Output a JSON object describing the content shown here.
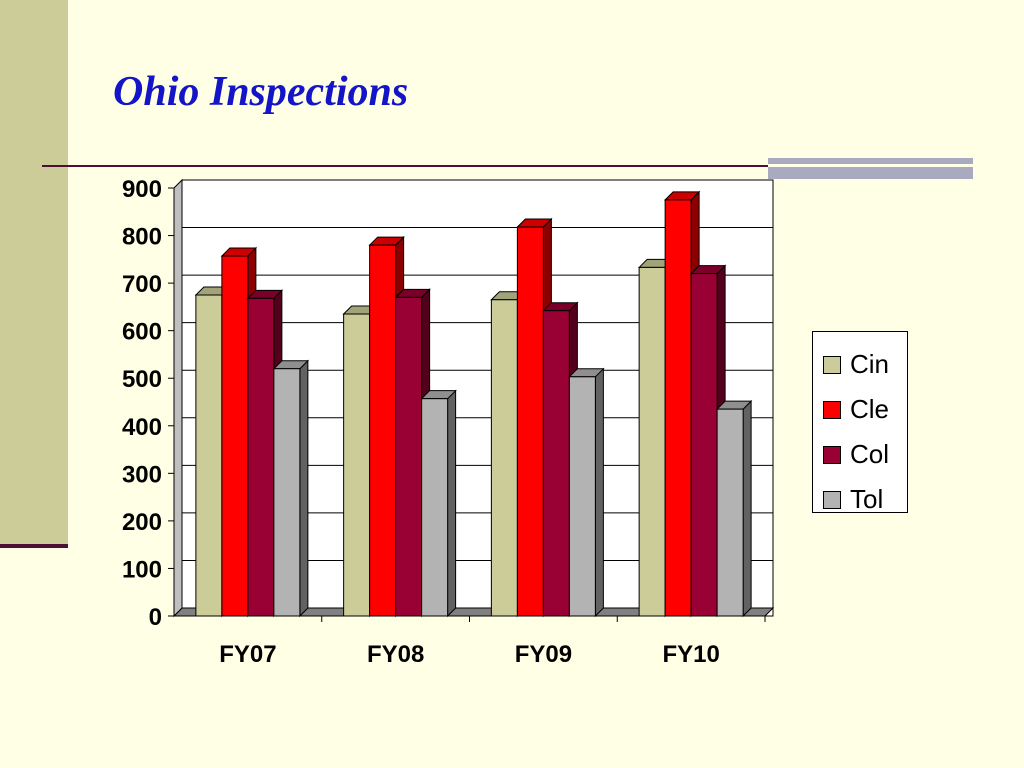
{
  "title": "Ohio Inspections",
  "chart_data": {
    "type": "bar",
    "title": "",
    "xlabel": "",
    "ylabel": "",
    "ylim": [
      0,
      900
    ],
    "yticks": [
      0,
      100,
      200,
      300,
      400,
      500,
      600,
      700,
      800,
      900
    ],
    "grid": true,
    "legend_position": "right",
    "categories": [
      "FY07",
      "FY08",
      "FY09",
      "FY10"
    ],
    "series": [
      {
        "name": "Cin",
        "color": "#CCCC99",
        "values": [
          675,
          635,
          665,
          733
        ]
      },
      {
        "name": "Cle",
        "color": "#FF0000",
        "values": [
          757,
          780,
          818,
          875
        ]
      },
      {
        "name": "Col",
        "color": "#990033",
        "values": [
          668,
          670,
          642,
          720
        ]
      },
      {
        "name": "Tol",
        "color": "#B3B3B3",
        "values": [
          520,
          457,
          503,
          435
        ]
      }
    ]
  },
  "legend": {
    "items": [
      {
        "label": "Cin",
        "color": "#CCCC99"
      },
      {
        "label": "Cle",
        "color": "#FF0000"
      },
      {
        "label": "Col",
        "color": "#990033"
      },
      {
        "label": "Tol",
        "color": "#B3B3B3"
      }
    ]
  }
}
